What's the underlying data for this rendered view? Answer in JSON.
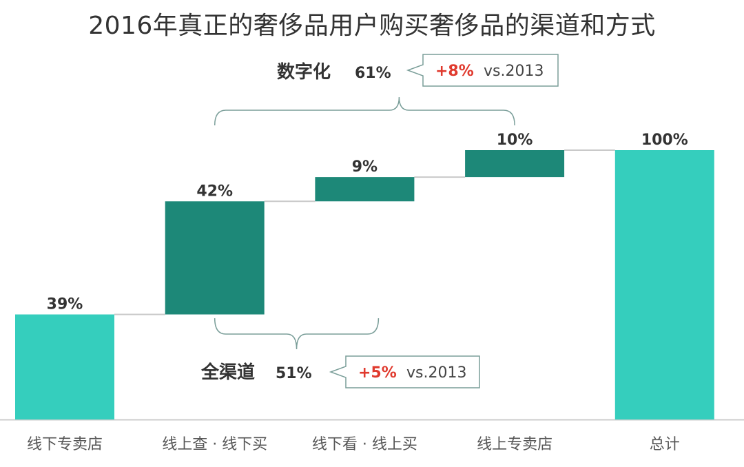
{
  "chart_data": {
    "type": "bar",
    "title": "2016年真正的奢侈品用户购买奢侈品的渠道和方式",
    "categories": [
      "线下专卖店",
      "线上查 · 线下买",
      "线下看 · 线上买",
      "线上专卖店",
      "总计"
    ],
    "values": [
      39,
      42,
      9,
      10,
      100
    ],
    "value_labels": [
      "39%",
      "42%",
      "9%",
      "10%",
      "100%"
    ],
    "ylim": [
      0,
      100
    ],
    "colors": {
      "total": "#35cebd",
      "step": "#1d8878",
      "connector": "#c9c9c9",
      "axis": "#cccccc",
      "bracket": "#7a9e99"
    },
    "groups": [
      {
        "name": "数字化",
        "value": "61%",
        "delta": "+8%",
        "ref": "vs.2013",
        "from": 1,
        "to": 3,
        "side": "top"
      },
      {
        "name": "全渠道",
        "value": "51%",
        "delta": "+5%",
        "ref": "vs.2013",
        "from": 1,
        "to": 2,
        "side": "bottom"
      }
    ]
  }
}
